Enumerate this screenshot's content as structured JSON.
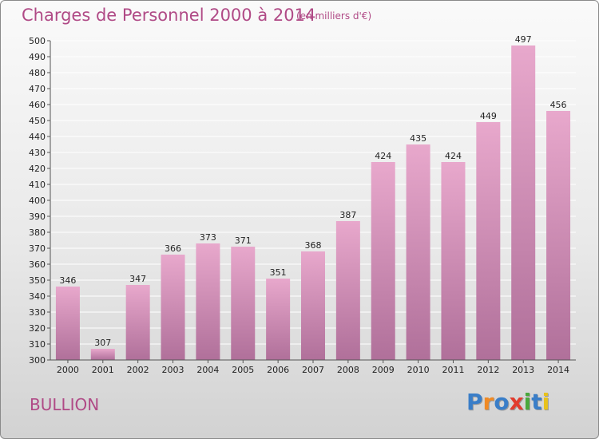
{
  "title": "Charges de Personnel 2000 à 2014",
  "subtitle": "(en milliers d'€)",
  "place": "BULLION",
  "logo": {
    "text": "Proxiti",
    "colors": [
      "#3a7ec8",
      "#f08a24",
      "#3a7ec8",
      "#e23c2e",
      "#4aa83c",
      "#3a7ec8",
      "#e8c21c"
    ]
  },
  "colors": {
    "title": "#b04a86",
    "bar_top": "#e8a8cc",
    "bar_bottom": "#b0709a",
    "grid": "#ffffff",
    "axis": "#555555"
  },
  "chart_data": {
    "type": "bar",
    "categories": [
      "2000",
      "2001",
      "2002",
      "2003",
      "2004",
      "2005",
      "2006",
      "2007",
      "2008",
      "2009",
      "2010",
      "2011",
      "2012",
      "2013",
      "2014"
    ],
    "values": [
      346,
      307,
      347,
      366,
      373,
      371,
      351,
      368,
      387,
      424,
      435,
      424,
      449,
      497,
      456
    ],
    "ylim": [
      300,
      500
    ],
    "yticks": [
      300,
      310,
      320,
      330,
      340,
      350,
      360,
      370,
      380,
      390,
      400,
      410,
      420,
      430,
      440,
      450,
      460,
      470,
      480,
      490,
      500
    ],
    "grid": true,
    "data_labels": true
  }
}
